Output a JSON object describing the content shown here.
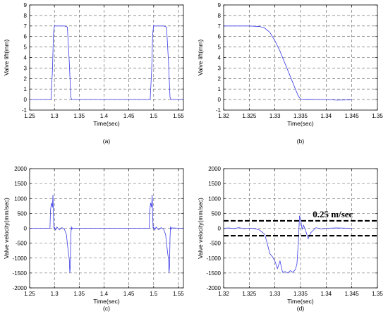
{
  "chart_data": [
    {
      "id": "a",
      "type": "line",
      "caption": "(a)",
      "xlabel": "Time(sec)",
      "ylabel": "Valve lift(mm)",
      "xlim": [
        1.25,
        1.56
      ],
      "ylim": [
        -1,
        9
      ],
      "xticks": [
        "1.25",
        "1.3",
        "1.35",
        "1.4",
        "1.45",
        "1.5",
        "1.55"
      ],
      "yticks": [
        "-1",
        "0",
        "1",
        "2",
        "3",
        "4",
        "5",
        "6",
        "7",
        "8",
        "9"
      ],
      "grid": true,
      "series": [
        {
          "color": "#3a3ae6",
          "x": [
            1.25,
            1.293,
            1.296,
            1.298,
            1.3,
            1.302,
            1.32,
            1.326,
            1.33,
            1.333,
            1.335,
            1.34,
            1.493,
            1.496,
            1.498,
            1.5,
            1.502,
            1.52,
            1.526,
            1.53,
            1.533,
            1.535,
            1.56
          ],
          "y": [
            0,
            0,
            2.8,
            6.2,
            7.05,
            7.0,
            7.0,
            6.9,
            3.5,
            0.2,
            0,
            0,
            0,
            2.8,
            6.2,
            7.05,
            7.0,
            7.0,
            6.9,
            3.5,
            0.2,
            0,
            0
          ]
        }
      ]
    },
    {
      "id": "b",
      "type": "line",
      "caption": "(b)",
      "xlabel": "Time(sec)",
      "ylabel": "Valve lift(mm)",
      "xlim": [
        1.32,
        1.35
      ],
      "ylim": [
        -1,
        9
      ],
      "xticks": [
        "1.32",
        "1.325",
        "1.33",
        "1.335",
        "1.34",
        "1.345",
        "1.35"
      ],
      "yticks": [
        "-1",
        "0",
        "1",
        "2",
        "3",
        "4",
        "5",
        "6",
        "7",
        "8",
        "9"
      ],
      "grid": true,
      "series": [
        {
          "color": "#3a3ae6",
          "x": [
            1.32,
            1.325,
            1.327,
            1.328,
            1.329,
            1.33,
            1.331,
            1.332,
            1.333,
            1.334,
            1.3345,
            1.335,
            1.3355,
            1.336,
            1.34,
            1.342,
            1.345
          ],
          "y": [
            7.0,
            7.0,
            6.95,
            6.8,
            6.4,
            5.6,
            4.6,
            3.4,
            2.2,
            1.0,
            0.4,
            0.05,
            0,
            0.02,
            0,
            -0.05,
            -0.03
          ]
        }
      ]
    },
    {
      "id": "c",
      "type": "line",
      "caption": "(c)",
      "xlabel": "Time(sec)",
      "ylabel": "Valve velocity(mm/sec)",
      "xlim": [
        1.25,
        1.56
      ],
      "ylim": [
        -2000,
        2000
      ],
      "xticks": [
        "1.25",
        "1.3",
        "1.35",
        "1.4",
        "1.45",
        "1.5",
        "1.55"
      ],
      "yticks": [
        "-2000",
        "-1500",
        "-1000",
        "-500",
        "0",
        "500",
        "1000",
        "1500",
        "2000"
      ],
      "grid": true,
      "series": [
        {
          "color": "#3a3ae6",
          "x": [
            1.25,
            1.291,
            1.292,
            1.294,
            1.296,
            1.297,
            1.298,
            1.299,
            1.3,
            1.302,
            1.305,
            1.31,
            1.315,
            1.32,
            1.324,
            1.326,
            1.328,
            1.33,
            1.331,
            1.332,
            1.333,
            1.334,
            1.335,
            1.336,
            1.34,
            1.45,
            1.491,
            1.492,
            1.494,
            1.496,
            1.497,
            1.498,
            1.499,
            1.5,
            1.502,
            1.505,
            1.51,
            1.515,
            1.52,
            1.524,
            1.526,
            1.528,
            1.53,
            1.531,
            1.532,
            1.533,
            1.534,
            1.535,
            1.536,
            1.56
          ],
          "y": [
            0,
            0,
            600,
            850,
            700,
            1120,
            400,
            0,
            30,
            -60,
            40,
            -50,
            20,
            -30,
            -200,
            -500,
            -800,
            -1050,
            -1500,
            -1280,
            -300,
            60,
            -40,
            10,
            0,
            0,
            0,
            600,
            850,
            700,
            1120,
            400,
            0,
            30,
            -60,
            40,
            -50,
            20,
            -30,
            -200,
            -500,
            -800,
            -1050,
            -1500,
            -1280,
            -300,
            60,
            -40,
            10,
            0
          ]
        }
      ]
    },
    {
      "id": "d",
      "type": "line",
      "caption": "(d)",
      "xlabel": "Time(sec)",
      "ylabel": "Valve velocity(mm/sec)",
      "xlim": [
        1.32,
        1.35
      ],
      "ylim": [
        -2000,
        2000
      ],
      "xticks": [
        "1.32",
        "1.325",
        "1.33",
        "1.335",
        "1.34",
        "1.345",
        "1.35"
      ],
      "yticks": [
        "-2000",
        "-1500",
        "-1000",
        "-500",
        "0",
        "500",
        "1000",
        "1500",
        "2000"
      ],
      "grid": true,
      "annotation": "0.25 m/sec",
      "reference_lines": [
        250,
        -250
      ],
      "series": [
        {
          "color": "#3a3ae6",
          "x": [
            1.32,
            1.321,
            1.322,
            1.323,
            1.324,
            1.325,
            1.326,
            1.327,
            1.328,
            1.3285,
            1.329,
            1.3295,
            1.33,
            1.3305,
            1.331,
            1.3315,
            1.332,
            1.3325,
            1.333,
            1.3335,
            1.334,
            1.3343,
            1.3346,
            1.3348,
            1.335,
            1.3353,
            1.3356,
            1.336,
            1.3365,
            1.337,
            1.338,
            1.339,
            1.34,
            1.342,
            1.345
          ],
          "y": [
            0,
            10,
            -10,
            20,
            -15,
            5,
            -10,
            -60,
            -200,
            -500,
            -850,
            -950,
            -1100,
            -1350,
            -1100,
            -1480,
            -1450,
            -1500,
            -1420,
            -1480,
            -1380,
            -1200,
            -400,
            420,
            320,
            -30,
            100,
            -80,
            -350,
            -150,
            20,
            -20,
            0,
            10,
            0
          ]
        }
      ]
    }
  ]
}
